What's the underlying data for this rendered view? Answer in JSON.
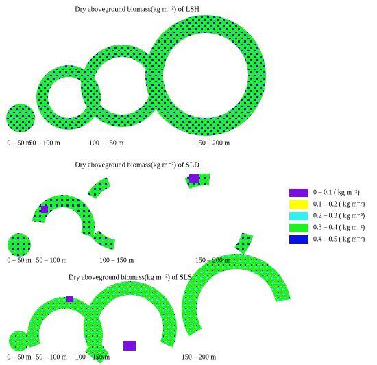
{
  "panels": [
    {
      "title": "Dry aboveground biomass(kg m⁻²) of LSH",
      "labels": [
        "0 – 50 m",
        "50 – 100 m",
        "100 – 150 m",
        "150 – 200 m"
      ]
    },
    {
      "title": "Dry aboveground biomass(kg m⁻²) of SLD",
      "labels": [
        "0 – 50 m",
        "50 – 100 m",
        "100 – 150 m",
        "150 – 200 m"
      ]
    },
    {
      "title": "Dry aboveground biomass(kg m⁻²) of SLS",
      "labels": [
        "0 – 50 m",
        "50 – 100 m",
        "100 – 150 m",
        "150 – 200 m"
      ]
    }
  ],
  "legend": [
    {
      "label": "0 – 0.1 ( kg m⁻²)",
      "color": "#7a10e0"
    },
    {
      "label": "0.1 – 0.2 ( kg m⁻²)",
      "color": "#ffff00"
    },
    {
      "label": "0.2 – 0.3 ( kg m⁻²)",
      "color": "#33f0f0"
    },
    {
      "label": "0.3 – 0.4 ( kg m⁻²)",
      "color": "#22ee22"
    },
    {
      "label": "0.4 – 0.5 ( kg m⁻²)",
      "color": "#0a10e8"
    }
  ]
}
